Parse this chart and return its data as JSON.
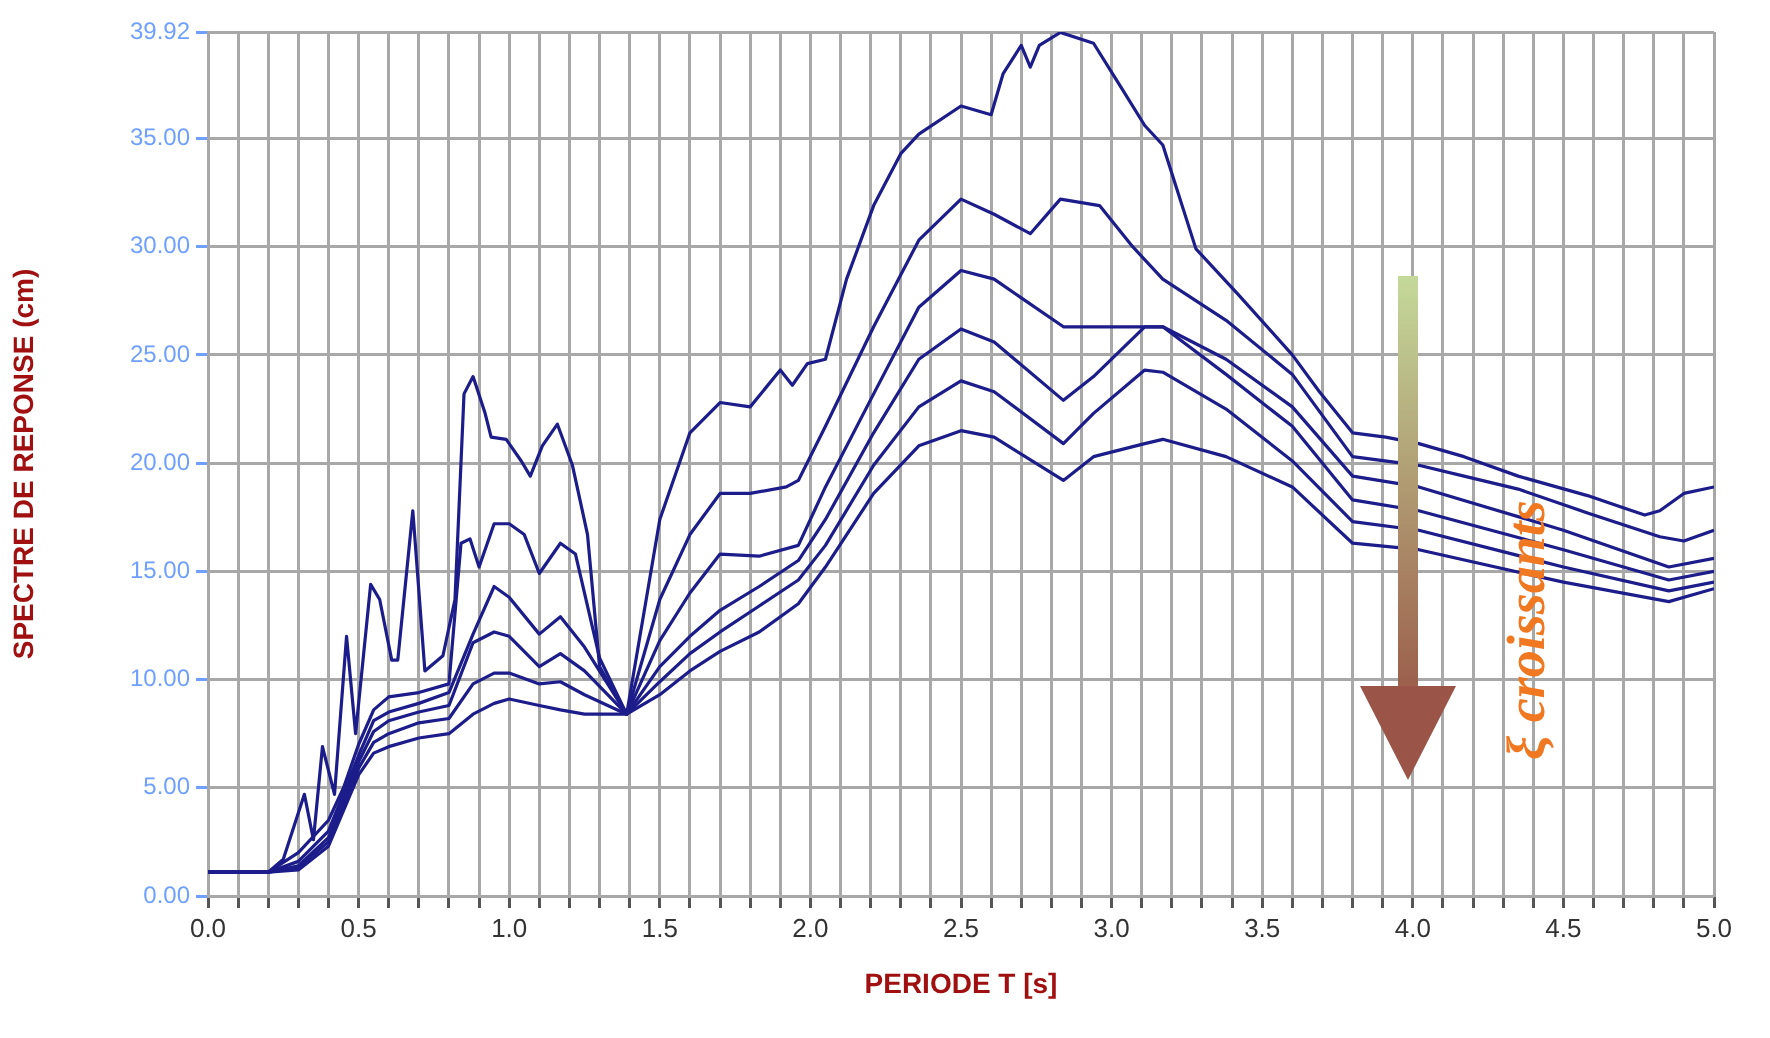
{
  "chart_data": {
    "type": "line",
    "xlabel": "PERIODE T [s]",
    "ylabel": "SPECTRE DE REPONSE (cm)",
    "annotations": [
      "ξ croissants"
    ],
    "xlim": [
      0,
      5
    ],
    "ylim": [
      0,
      39.92
    ],
    "xticks": [
      {
        "value": 0,
        "label": "0.0"
      },
      {
        "value": 0.1,
        "label": null
      },
      {
        "value": 0.2,
        "label": null
      },
      {
        "value": 0.3,
        "label": null
      },
      {
        "value": 0.4,
        "label": null
      },
      {
        "value": 0.5,
        "label": "0.5"
      },
      {
        "value": 0.6,
        "label": null
      },
      {
        "value": 0.7,
        "label": null
      },
      {
        "value": 0.8,
        "label": null
      },
      {
        "value": 0.9,
        "label": null
      },
      {
        "value": 1,
        "label": "1.0"
      },
      {
        "value": 1.1,
        "label": null
      },
      {
        "value": 1.2,
        "label": null
      },
      {
        "value": 1.3,
        "label": null
      },
      {
        "value": 1.4,
        "label": null
      },
      {
        "value": 1.5,
        "label": "1.5"
      },
      {
        "value": 1.6,
        "label": null
      },
      {
        "value": 1.7,
        "label": null
      },
      {
        "value": 1.8,
        "label": null
      },
      {
        "value": 1.9,
        "label": null
      },
      {
        "value": 2,
        "label": "2.0"
      },
      {
        "value": 2.1,
        "label": null
      },
      {
        "value": 2.2,
        "label": null
      },
      {
        "value": 2.3,
        "label": null
      },
      {
        "value": 2.4,
        "label": null
      },
      {
        "value": 2.5,
        "label": "2.5"
      },
      {
        "value": 2.6,
        "label": null
      },
      {
        "value": 2.7,
        "label": null
      },
      {
        "value": 2.8,
        "label": null
      },
      {
        "value": 2.9,
        "label": null
      },
      {
        "value": 3,
        "label": "3.0"
      },
      {
        "value": 3.1,
        "label": null
      },
      {
        "value": 3.2,
        "label": null
      },
      {
        "value": 3.3,
        "label": null
      },
      {
        "value": 3.4,
        "label": null
      },
      {
        "value": 3.5,
        "label": "3.5"
      },
      {
        "value": 3.6,
        "label": null
      },
      {
        "value": 3.7,
        "label": null
      },
      {
        "value": 3.8,
        "label": null
      },
      {
        "value": 3.9,
        "label": null
      },
      {
        "value": 4,
        "label": "4.0"
      },
      {
        "value": 4.1,
        "label": null
      },
      {
        "value": 4.2,
        "label": null
      },
      {
        "value": 4.3,
        "label": null
      },
      {
        "value": 4.4,
        "label": null
      },
      {
        "value": 4.5,
        "label": "4.5"
      },
      {
        "value": 4.6,
        "label": null
      },
      {
        "value": 4.7,
        "label": null
      },
      {
        "value": 4.8,
        "label": null
      },
      {
        "value": 4.9,
        "label": null
      },
      {
        "value": 5,
        "label": "5.0"
      }
    ],
    "yticks": [
      {
        "value": 0,
        "label": "0.00"
      },
      {
        "value": 5,
        "label": "5.00"
      },
      {
        "value": 10,
        "label": "10.00"
      },
      {
        "value": 15,
        "label": "15.00"
      },
      {
        "value": 20,
        "label": "20.00"
      },
      {
        "value": 25,
        "label": "25.00"
      },
      {
        "value": 30,
        "label": "30.00"
      },
      {
        "value": 35,
        "label": "35.00"
      },
      {
        "value": 39.92,
        "label": "39.92"
      }
    ],
    "grid": true,
    "legend": false,
    "marker": "none",
    "line_style": "solid",
    "series": [
      {
        "color": "#1c1c8a",
        "x": [
          0,
          0.2,
          0.25,
          0.32,
          0.35,
          0.38,
          0.42,
          0.46,
          0.49,
          0.54,
          0.57,
          0.61,
          0.63,
          0.68,
          0.72,
          0.78,
          0.82,
          0.85,
          0.88,
          0.92,
          0.94,
          0.99,
          1.04,
          1.07,
          1.11,
          1.16,
          1.21,
          1.26,
          1.3,
          1.39,
          1.5,
          1.6,
          1.7,
          1.8,
          1.9,
          1.94,
          1.99,
          2.05,
          2.12,
          2.21,
          2.3,
          2.36,
          2.5,
          2.6,
          2.64,
          2.7,
          2.73,
          2.76,
          2.83,
          2.94,
          3.03,
          3.11,
          3.17,
          3.28,
          3.42,
          3.6,
          3.69,
          3.8,
          3.91,
          4.02,
          4.17,
          4.35,
          4.58,
          4.77,
          4.82,
          4.9,
          5.0
        ],
        "values": [
          1.1,
          1.1,
          1.7,
          4.7,
          2.6,
          6.9,
          4.7,
          12.0,
          7.5,
          14.4,
          13.7,
          10.9,
          10.9,
          17.8,
          10.4,
          11.1,
          13.7,
          23.2,
          24.0,
          22.3,
          21.2,
          21.1,
          20.1,
          19.4,
          20.8,
          21.8,
          19.9,
          16.7,
          10.6,
          8.4,
          17.4,
          21.4,
          22.8,
          22.6,
          24.3,
          23.6,
          24.6,
          24.8,
          28.5,
          31.9,
          34.3,
          35.2,
          36.5,
          36.1,
          38.0,
          39.3,
          38.3,
          39.3,
          39.9,
          39.4,
          37.4,
          35.6,
          34.7,
          29.9,
          27.8,
          25.0,
          23.3,
          21.4,
          21.2,
          20.9,
          20.3,
          19.4,
          18.5,
          17.6,
          17.8,
          18.6,
          18.9
        ]
      },
      {
        "color": "#1c1c8a",
        "x": [
          0,
          0.2,
          0.3,
          0.4,
          0.45,
          0.5,
          0.55,
          0.6,
          0.7,
          0.8,
          0.84,
          0.87,
          0.9,
          0.95,
          1.0,
          1.05,
          1.1,
          1.17,
          1.22,
          1.3,
          1.39,
          1.5,
          1.6,
          1.7,
          1.8,
          1.92,
          1.96,
          2.05,
          2.21,
          2.36,
          2.5,
          2.61,
          2.73,
          2.83,
          2.96,
          3.07,
          3.17,
          3.38,
          3.6,
          3.8,
          4.02,
          4.17,
          4.35,
          4.58,
          4.82,
          4.9,
          5.0
        ],
        "values": [
          1.1,
          1.1,
          2.0,
          3.5,
          5.0,
          7.0,
          8.6,
          9.2,
          9.4,
          9.8,
          16.3,
          16.5,
          15.2,
          17.2,
          17.2,
          16.7,
          14.9,
          16.3,
          15.8,
          11.0,
          8.4,
          13.7,
          16.7,
          18.6,
          18.6,
          18.9,
          19.2,
          21.7,
          26.3,
          30.3,
          32.2,
          31.5,
          30.6,
          32.2,
          31.9,
          30.0,
          28.5,
          26.6,
          24.1,
          20.3,
          19.9,
          19.4,
          18.8,
          17.7,
          16.6,
          16.4,
          16.9
        ]
      },
      {
        "color": "#1c1c8a",
        "x": [
          0,
          0.2,
          0.3,
          0.4,
          0.5,
          0.55,
          0.6,
          0.7,
          0.8,
          0.88,
          0.95,
          1.0,
          1.1,
          1.17,
          1.25,
          1.39,
          1.5,
          1.6,
          1.7,
          1.83,
          1.96,
          2.05,
          2.21,
          2.36,
          2.5,
          2.61,
          2.84,
          2.94,
          3.11,
          3.17,
          3.38,
          3.6,
          3.8,
          4.02,
          4.5,
          4.85,
          5.0
        ],
        "values": [
          1.1,
          1.1,
          1.6,
          3.0,
          6.5,
          8.1,
          8.5,
          8.9,
          9.4,
          12.1,
          14.3,
          13.8,
          12.1,
          12.9,
          11.5,
          8.4,
          11.8,
          14.0,
          15.8,
          15.7,
          16.2,
          18.9,
          23.2,
          27.2,
          28.9,
          28.5,
          26.3,
          26.3,
          26.3,
          26.3,
          24.8,
          22.6,
          19.4,
          18.9,
          16.9,
          15.2,
          15.6
        ]
      },
      {
        "color": "#1c1c8a",
        "x": [
          0,
          0.2,
          0.3,
          0.4,
          0.5,
          0.55,
          0.6,
          0.7,
          0.8,
          0.88,
          0.95,
          1.0,
          1.1,
          1.17,
          1.25,
          1.39,
          1.5,
          1.6,
          1.7,
          1.83,
          1.96,
          2.05,
          2.21,
          2.36,
          2.5,
          2.61,
          2.84,
          2.94,
          3.11,
          3.17,
          3.38,
          3.6,
          3.8,
          4.02,
          4.5,
          4.85,
          5.0
        ],
        "values": [
          1.1,
          1.1,
          1.4,
          2.7,
          6.2,
          7.6,
          8.1,
          8.5,
          8.8,
          11.7,
          12.2,
          12.0,
          10.6,
          11.2,
          10.4,
          8.4,
          10.6,
          12.0,
          13.2,
          14.3,
          15.5,
          17.4,
          21.4,
          24.8,
          26.2,
          25.6,
          22.9,
          24.0,
          26.3,
          26.3,
          24.1,
          21.7,
          18.3,
          17.8,
          16.0,
          14.6,
          15.0
        ]
      },
      {
        "color": "#1c1c8a",
        "x": [
          0,
          0.2,
          0.3,
          0.4,
          0.5,
          0.55,
          0.6,
          0.7,
          0.8,
          0.88,
          0.95,
          1.0,
          1.1,
          1.17,
          1.25,
          1.39,
          1.5,
          1.6,
          1.7,
          1.83,
          1.96,
          2.05,
          2.21,
          2.36,
          2.5,
          2.61,
          2.84,
          2.94,
          3.11,
          3.17,
          3.38,
          3.6,
          3.8,
          4.02,
          4.5,
          4.85,
          5.0
        ],
        "values": [
          1.1,
          1.1,
          1.3,
          2.5,
          5.9,
          7.1,
          7.5,
          8.0,
          8.2,
          9.8,
          10.3,
          10.3,
          9.8,
          9.9,
          9.3,
          8.4,
          9.9,
          11.2,
          12.2,
          13.4,
          14.6,
          16.2,
          19.9,
          22.6,
          23.8,
          23.3,
          20.9,
          22.3,
          24.3,
          24.2,
          22.5,
          20.1,
          17.3,
          16.9,
          15.2,
          14.1,
          14.5
        ]
      },
      {
        "color": "#1c1c8a",
        "x": [
          0,
          0.2,
          0.3,
          0.4,
          0.5,
          0.55,
          0.6,
          0.7,
          0.8,
          0.88,
          0.95,
          1.0,
          1.1,
          1.17,
          1.25,
          1.39,
          1.5,
          1.6,
          1.7,
          1.83,
          1.96,
          2.05,
          2.21,
          2.36,
          2.5,
          2.61,
          2.84,
          2.94,
          3.11,
          3.17,
          3.38,
          3.6,
          3.8,
          4.02,
          4.5,
          4.85,
          5.0
        ],
        "values": [
          1.1,
          1.1,
          1.2,
          2.3,
          5.6,
          6.6,
          6.9,
          7.3,
          7.5,
          8.4,
          8.9,
          9.1,
          8.8,
          8.6,
          8.4,
          8.4,
          9.3,
          10.4,
          11.3,
          12.2,
          13.5,
          15.2,
          18.6,
          20.8,
          21.5,
          21.2,
          19.2,
          20.3,
          20.9,
          21.1,
          20.3,
          18.9,
          16.3,
          16.0,
          14.5,
          13.6,
          14.2
        ]
      }
    ]
  }
}
